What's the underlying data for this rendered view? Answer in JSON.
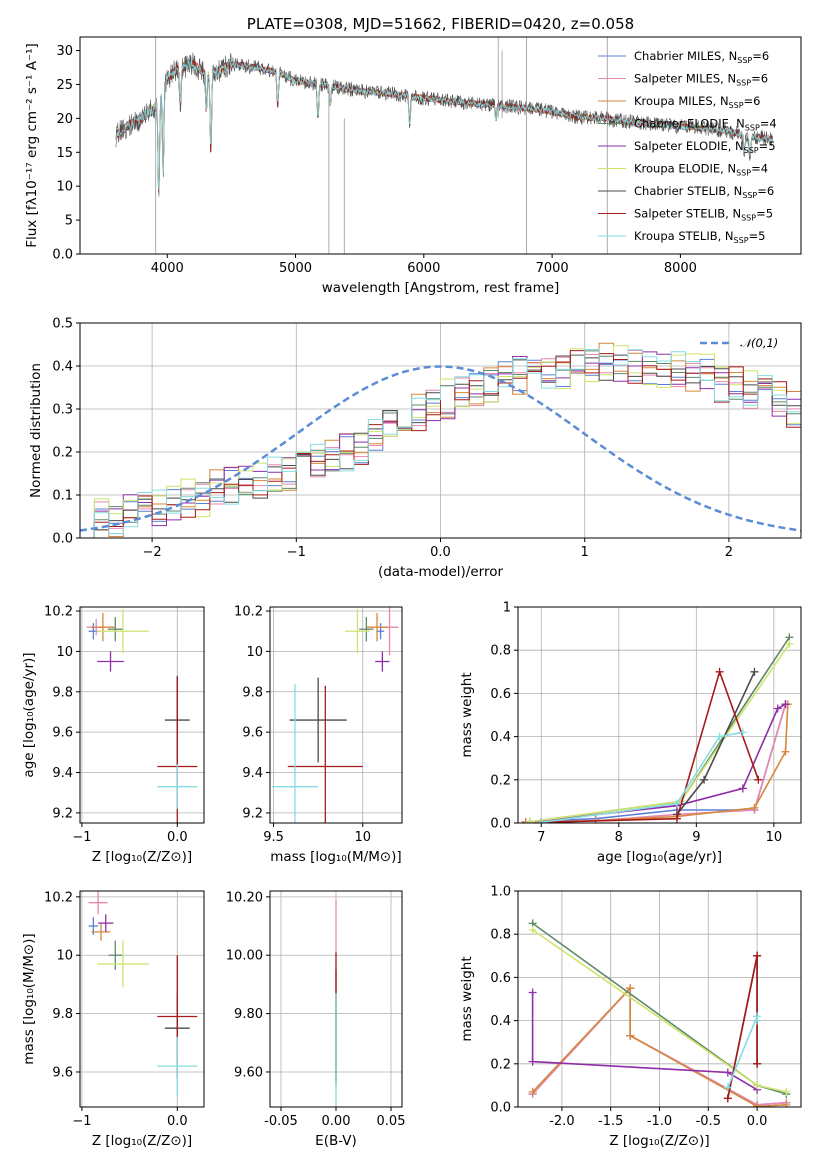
{
  "colors": {
    "chabrier_miles": "#5b7fd6",
    "salpeter_miles": "#e887b0",
    "kroupa_miles": "#d6873a",
    "chabrier_elodie": "#5f8a6a",
    "salpeter_elodie": "#8e2fa8",
    "kroupa_elodie": "#cfe36b",
    "chabrier_stelib": "#4a4a4a",
    "salpeter_stelib": "#a61b1b",
    "kroupa_stelib": "#86dde0",
    "normal_curve": "#5b8cd6",
    "grid": "#b0b0b0"
  },
  "chart_data": [
    {
      "id": "spectrum",
      "type": "line",
      "title": "PLATE=0308, MJD=51662, FIBERID=0420, z=0.058",
      "xlabel": "wavelength [Angstrom, rest frame]",
      "ylabel": "Flux [fλ10⁻¹⁷ erg cm⁻² s⁻¹ A⁻¹]",
      "xlim": [
        3320,
        8940
      ],
      "ylim": [
        0,
        32
      ],
      "xticks": [
        4000,
        5000,
        6000,
        7000,
        8000
      ],
      "yticks": [
        0,
        5,
        10,
        15,
        20,
        25,
        30
      ],
      "grid": false,
      "legend": "top-right",
      "legend_entries": [
        {
          "label": "Chabrier MILES, N",
          "sub": "SSP",
          "suffix": "=6",
          "color": "#5b7fd6"
        },
        {
          "label": "Salpeter MILES, N",
          "sub": "SSP",
          "suffix": "=6",
          "color": "#e887b0"
        },
        {
          "label": "Kroupa MILES, N",
          "sub": "SSP",
          "suffix": "=6",
          "color": "#d6873a"
        },
        {
          "label": "Chabrier ELODIE, N",
          "sub": "SSP",
          "suffix": "=4",
          "color": "#5f8a6a"
        },
        {
          "label": "Salpeter ELODIE, N",
          "sub": "SSP",
          "suffix": "=5",
          "color": "#8e2fa8"
        },
        {
          "label": "Kroupa ELODIE, N",
          "sub": "SSP",
          "suffix": "=4",
          "color": "#cfe36b"
        },
        {
          "label": "Chabrier STELIB, N",
          "sub": "SSP",
          "suffix": "=6",
          "color": "#4a4a4a"
        },
        {
          "label": "Salpeter STELIB, N",
          "sub": "SSP",
          "suffix": "=5",
          "color": "#a61b1b"
        },
        {
          "label": "Kroupa STELIB, N",
          "sub": "SSP",
          "suffix": "=5",
          "color": "#86dde0"
        }
      ],
      "data_continuum": {
        "x": [
          3600,
          3700,
          3800,
          3900,
          4000,
          4100,
          4200,
          4300,
          4400,
          4500,
          4700,
          4900,
          5000,
          5200,
          5500,
          5800,
          6000,
          6200,
          6500,
          6800,
          7000,
          7200,
          7400,
          7600,
          7800,
          8000,
          8200,
          8400,
          8500,
          8700
        ],
        "y": [
          17.5,
          19,
          20,
          21.5,
          26,
          27.5,
          28,
          26.5,
          27,
          28,
          27.5,
          26.5,
          25.5,
          25,
          24,
          23.5,
          23,
          22.5,
          22,
          21.5,
          21,
          20.2,
          20,
          19.5,
          19.2,
          18.8,
          18.5,
          18,
          17.5,
          17
        ]
      },
      "absorption_lines": [
        {
          "x": 3934,
          "y": 8
        },
        {
          "x": 3968,
          "y": 12
        },
        {
          "x": 4102,
          "y": 22
        },
        {
          "x": 4305,
          "y": 21
        },
        {
          "x": 4340,
          "y": 15
        },
        {
          "x": 4861,
          "y": 22
        },
        {
          "x": 5175,
          "y": 20
        },
        {
          "x": 5270,
          "y": 22
        },
        {
          "x": 5890,
          "y": 19
        },
        {
          "x": 6563,
          "y": 20
        },
        {
          "x": 8498,
          "y": 15
        },
        {
          "x": 8542,
          "y": 14
        }
      ],
      "spikes": [
        {
          "x": 3910,
          "y0": 0,
          "y1": 32
        },
        {
          "x": 5260,
          "y0": 0,
          "y1": 25
        },
        {
          "x": 5380,
          "y0": 0,
          "y1": 20
        },
        {
          "x": 6580,
          "y0": 20,
          "y1": 32
        },
        {
          "x": 6610,
          "y0": 20,
          "y1": 30
        },
        {
          "x": 6800,
          "y0": 0,
          "y1": 32
        },
        {
          "x": 7430,
          "y0": 0,
          "y1": 32
        }
      ]
    },
    {
      "id": "residual-histogram",
      "type": "histogram",
      "xlabel": "(data-model)/error",
      "ylabel": "Normed distribution",
      "xlim": [
        -2.5,
        2.5
      ],
      "ylim": [
        0,
        0.5
      ],
      "xticks": [
        -2,
        -1,
        0,
        1,
        2
      ],
      "yticks": [
        0.0,
        0.1,
        0.2,
        0.3,
        0.4,
        0.5
      ],
      "grid": true,
      "legend": "top-right",
      "legend_entries": [
        {
          "label": "𝒩(0,1)",
          "color": "#5b8cd6",
          "style": "dashed"
        }
      ],
      "bin_width": 0.1,
      "x_start": -2.5,
      "base_profile": "gaussian(mu=0, sigma=1)",
      "bin_values": [
        0.035,
        0.045,
        0.04,
        0.06,
        0.07,
        0.065,
        0.075,
        0.09,
        0.095,
        0.11,
        0.12,
        0.13,
        0.125,
        0.14,
        0.15,
        0.17,
        0.18,
        0.19,
        0.2,
        0.21,
        0.24,
        0.26,
        0.27,
        0.29,
        0.31,
        0.32,
        0.335,
        0.34,
        0.355,
        0.37,
        0.38,
        0.385,
        0.39,
        0.395,
        0.4,
        0.4,
        0.405,
        0.405,
        0.4,
        0.395,
        0.39,
        0.39,
        0.385,
        0.375,
        0.36,
        0.355,
        0.34,
        0.33,
        0.32,
        0.3,
        0.28,
        0.27,
        0.25,
        0.235,
        0.22,
        0.205,
        0.19,
        0.175,
        0.16,
        0.145,
        0.13,
        0.115,
        0.1,
        0.09,
        0.08,
        0.07,
        0.06,
        0.055,
        0.05,
        0.04,
        0.035
      ],
      "series_noise": [
        0.02,
        0.018,
        0.022,
        0.016,
        0.02,
        0.024,
        0.018,
        0.02,
        0.022
      ]
    },
    {
      "id": "age-vs-Z",
      "type": "errorbar",
      "xlabel": "Z [log₁₀(Z/Z⊙)]",
      "ylabel": "age [log₁₀(age/yr)]",
      "xlim": [
        -1.02,
        0.28
      ],
      "ylim": [
        9.15,
        10.22
      ],
      "xticks": [
        -1,
        0
      ],
      "yticks": [
        9.2,
        9.4,
        9.6,
        9.8,
        10.0,
        10.2
      ],
      "grid": true,
      "points": [
        {
          "series": "Chabrier MILES",
          "x": -0.88,
          "y": 10.1,
          "xerr": 0.05,
          "yerr": 0.04,
          "color": "#5b7fd6"
        },
        {
          "series": "Salpeter MILES",
          "x": -0.85,
          "y": 10.12,
          "xerr": 0.1,
          "yerr": 0.04,
          "color": "#e887b0"
        },
        {
          "series": "Kroupa MILES",
          "x": -0.78,
          "y": 10.12,
          "xerr": 0.12,
          "yerr": 0.07,
          "color": "#d6873a"
        },
        {
          "series": "Chabrier ELODIE",
          "x": -0.65,
          "y": 10.11,
          "xerr": 0.08,
          "yerr": 0.06,
          "color": "#5f8a6a"
        },
        {
          "series": "Salpeter ELODIE",
          "x": -0.7,
          "y": 9.95,
          "xerr": 0.14,
          "yerr": 0.05,
          "color": "#8e2fa8"
        },
        {
          "series": "Kroupa ELODIE",
          "x": -0.57,
          "y": 10.1,
          "xerr": 0.27,
          "yerr": 0.11,
          "color": "#cfe36b"
        },
        {
          "series": "Chabrier STELIB",
          "x": 0.0,
          "y": 9.66,
          "xerr": 0.13,
          "yerr": 0.22,
          "color": "#4a4a4a"
        },
        {
          "series": "Salpeter STELIB",
          "x": 0.0,
          "y": 9.43,
          "xerr": 0.21,
          "yerr": 0.44,
          "color": "#a61b1b"
        },
        {
          "series": "Kroupa STELIB",
          "x": 0.0,
          "y": 9.33,
          "xerr": 0.21,
          "yerr": 0.11,
          "color": "#86dde0"
        }
      ]
    },
    {
      "id": "age-vs-mass",
      "type": "errorbar",
      "xlabel": "mass [log₁₀(M/M⊙)]",
      "ylabel": "",
      "xlim": [
        9.48,
        10.22
      ],
      "ylim": [
        9.15,
        10.22
      ],
      "xticks": [
        9.5,
        10.0
      ],
      "yticks": [
        9.2,
        9.4,
        9.6,
        9.8,
        10.0,
        10.2
      ],
      "grid": true,
      "points": [
        {
          "series": "Chabrier MILES",
          "x": 10.1,
          "y": 10.1,
          "xerr": 0.02,
          "yerr": 0.04,
          "color": "#5b7fd6"
        },
        {
          "series": "Salpeter MILES",
          "x": 10.15,
          "y": 10.12,
          "xerr": 0.05,
          "yerr": 0.14,
          "color": "#e887b0"
        },
        {
          "series": "Kroupa MILES",
          "x": 10.08,
          "y": 10.12,
          "xerr": 0.06,
          "yerr": 0.07,
          "color": "#d6873a"
        },
        {
          "series": "Chabrier ELODIE",
          "x": 10.02,
          "y": 10.11,
          "xerr": 0.04,
          "yerr": 0.06,
          "color": "#5f8a6a"
        },
        {
          "series": "Salpeter ELODIE",
          "x": 10.11,
          "y": 9.95,
          "xerr": 0.04,
          "yerr": 0.05,
          "color": "#8e2fa8"
        },
        {
          "series": "Kroupa ELODIE",
          "x": 9.97,
          "y": 10.1,
          "xerr": 0.07,
          "yerr": 0.11,
          "color": "#cfe36b"
        },
        {
          "series": "Chabrier STELIB",
          "x": 9.75,
          "y": 9.66,
          "xerr": 0.16,
          "yerr": 0.21,
          "color": "#4a4a4a"
        },
        {
          "series": "Salpeter STELIB",
          "x": 9.79,
          "y": 9.43,
          "xerr": 0.21,
          "yerr": 0.4,
          "color": "#a61b1b"
        },
        {
          "series": "Kroupa STELIB",
          "x": 9.62,
          "y": 9.33,
          "xerr": 0.13,
          "yerr": 0.51,
          "color": "#86dde0"
        }
      ]
    },
    {
      "id": "mass-weight-vs-age",
      "type": "line",
      "xlabel": "age  [log₁₀(age/yr)]",
      "ylabel": "mass weight",
      "xlim": [
        6.7,
        10.35
      ],
      "ylim": [
        0,
        1.0
      ],
      "xticks": [
        7,
        8,
        9,
        10
      ],
      "yticks": [
        0.0,
        0.2,
        0.4,
        0.6,
        0.8,
        1.0
      ],
      "grid": true,
      "series": [
        {
          "name": "Chabrier MILES",
          "color": "#5b7fd6",
          "x": [
            6.8,
            7.7,
            8.75,
            9.75,
            10.15
          ],
          "y": [
            0.005,
            0.02,
            0.06,
            0.06,
            0.55
          ]
        },
        {
          "name": "Salpeter MILES",
          "color": "#e887b0",
          "x": [
            6.8,
            7.7,
            8.75,
            9.75,
            10.15
          ],
          "y": [
            0.005,
            0.01,
            0.04,
            0.06,
            0.55
          ]
        },
        {
          "name": "Kroupa MILES",
          "color": "#d6873a",
          "x": [
            6.8,
            7.7,
            8.75,
            9.75,
            10.15,
            10.18
          ],
          "y": [
            0.003,
            0.01,
            0.03,
            0.07,
            0.33,
            0.55
          ]
        },
        {
          "name": "Chabrier ELODIE",
          "color": "#5f8a6a",
          "x": [
            6.85,
            8.8,
            10.2
          ],
          "y": [
            0.005,
            0.1,
            0.86
          ]
        },
        {
          "name": "Salpeter ELODIE",
          "color": "#8e2fa8",
          "x": [
            6.85,
            8.75,
            9.6,
            10.05,
            10.15
          ],
          "y": [
            0.005,
            0.08,
            0.16,
            0.53,
            0.55
          ]
        },
        {
          "name": "Kroupa ELODIE",
          "color": "#cfe36b",
          "x": [
            6.85,
            8.8,
            10.2
          ],
          "y": [
            0.005,
            0.1,
            0.83
          ]
        },
        {
          "name": "Chabrier STELIB",
          "color": "#4a4a4a",
          "x": [
            8.75,
            9.1,
            9.75
          ],
          "y": [
            0.04,
            0.2,
            0.7
          ]
        },
        {
          "name": "Salpeter STELIB",
          "color": "#a61b1b",
          "x": [
            7.0,
            8.75,
            9.3,
            9.8
          ],
          "y": [
            0.003,
            0.02,
            0.7,
            0.2
          ]
        },
        {
          "name": "Kroupa STELIB",
          "color": "#86dde0",
          "x": [
            7.0,
            8.75,
            9.3,
            9.6
          ],
          "y": [
            0.003,
            0.09,
            0.4,
            0.42
          ]
        }
      ]
    },
    {
      "id": "mass-vs-Z",
      "type": "errorbar",
      "xlabel": "Z [log₁₀(Z/Z⊙)]",
      "ylabel": "mass [log₁₀(M/M⊙)]",
      "xlim": [
        -1.02,
        0.28
      ],
      "ylim": [
        9.48,
        10.22
      ],
      "xticks": [
        -1,
        0
      ],
      "yticks": [
        9.6,
        9.8,
        10.0,
        10.2
      ],
      "grid": true,
      "points": [
        {
          "series": "Chabrier MILES",
          "x": -0.88,
          "y": 10.1,
          "xerr": 0.05,
          "yerr": 0.03,
          "color": "#5b7fd6"
        },
        {
          "series": "Salpeter MILES",
          "x": -0.83,
          "y": 10.18,
          "xerr": 0.1,
          "yerr": 0.04,
          "color": "#e887b0"
        },
        {
          "series": "Kroupa MILES",
          "x": -0.8,
          "y": 10.08,
          "xerr": 0.1,
          "yerr": 0.03,
          "color": "#d6873a"
        },
        {
          "series": "Chabrier ELODIE",
          "x": -0.65,
          "y": 10.0,
          "xerr": 0.07,
          "yerr": 0.05,
          "color": "#5f8a6a"
        },
        {
          "series": "Salpeter ELODIE",
          "x": -0.75,
          "y": 10.11,
          "xerr": 0.08,
          "yerr": 0.03,
          "color": "#8e2fa8"
        },
        {
          "series": "Kroupa ELODIE",
          "x": -0.57,
          "y": 9.97,
          "xerr": 0.27,
          "yerr": 0.08,
          "color": "#cfe36b"
        },
        {
          "series": "Chabrier STELIB",
          "x": 0.0,
          "y": 9.75,
          "xerr": 0.13,
          "yerr": 0.12,
          "color": "#4a4a4a"
        },
        {
          "series": "Salpeter STELIB",
          "x": 0.0,
          "y": 9.79,
          "xerr": 0.21,
          "yerr": 0.21,
          "color": "#a61b1b"
        },
        {
          "series": "Kroupa STELIB",
          "x": 0.0,
          "y": 9.62,
          "xerr": 0.21,
          "yerr": 0.1,
          "color": "#86dde0"
        }
      ]
    },
    {
      "id": "mass-vs-EBV",
      "type": "errorbar",
      "xlabel": "E(B-V)",
      "ylabel": "",
      "xlim": [
        -0.06,
        0.06
      ],
      "ylim": [
        9.48,
        10.22
      ],
      "xticks": [
        -0.05,
        0.0,
        0.05
      ],
      "yticks": [
        9.6,
        9.8,
        10.0,
        10.2
      ],
      "grid": true,
      "points": [
        {
          "series": "Salpeter MILES",
          "x": 0.0,
          "y": 10.1,
          "xerr": 0.0,
          "yerr": 0.09,
          "color": "#e887b0"
        },
        {
          "series": "Chabrier STELIB",
          "x": 0.0,
          "y": 9.75,
          "xerr": 0.0,
          "yerr": 0.2,
          "color": "#4a4a4a"
        },
        {
          "series": "Salpeter STELIB",
          "x": 0.0,
          "y": 9.79,
          "xerr": 0.0,
          "yerr": 0.22,
          "color": "#a61b1b"
        },
        {
          "series": "Kroupa STELIB",
          "x": 0.0,
          "y": 9.62,
          "xerr": 0.0,
          "yerr": 0.25,
          "color": "#86dde0"
        }
      ]
    },
    {
      "id": "mass-weight-vs-Z",
      "type": "line",
      "xlabel": "Z [log₁₀(Z/Z⊙)]",
      "ylabel": "mass weight",
      "xlim": [
        -2.45,
        0.45
      ],
      "ylim": [
        0,
        1.0
      ],
      "xticks": [
        -2.0,
        -1.5,
        -1.0,
        -0.5,
        0.0
      ],
      "yticks": [
        0.0,
        0.2,
        0.4,
        0.6,
        0.8,
        1.0
      ],
      "grid": true,
      "series": [
        {
          "name": "Chabrier MILES",
          "color": "#5b7fd6",
          "x": [
            -2.3,
            -1.3,
            -1.3,
            0.0,
            0.3
          ],
          "y": [
            0.06,
            0.55,
            0.33,
            0.01,
            0.02
          ]
        },
        {
          "name": "Salpeter MILES",
          "color": "#e887b0",
          "x": [
            -2.3,
            -1.3,
            -1.3,
            0.0,
            0.3
          ],
          "y": [
            0.06,
            0.55,
            0.33,
            0.01,
            0.02
          ]
        },
        {
          "name": "Kroupa MILES",
          "color": "#d6873a",
          "x": [
            -2.3,
            -1.3,
            -1.3,
            0.0,
            0.3
          ],
          "y": [
            0.07,
            0.55,
            0.33,
            0.003,
            0.01
          ]
        },
        {
          "name": "Chabrier ELODIE",
          "color": "#5f8a6a",
          "x": [
            -2.3,
            0.0,
            0.3
          ],
          "y": [
            0.85,
            0.1,
            0.06
          ]
        },
        {
          "name": "Salpeter ELODIE",
          "color": "#8e2fa8",
          "x": [
            -2.3,
            -2.3,
            -0.3,
            0.0
          ],
          "y": [
            0.53,
            0.21,
            0.16,
            0.08
          ]
        },
        {
          "name": "Kroupa ELODIE",
          "color": "#cfe36b",
          "x": [
            -2.3,
            0.0,
            0.3
          ],
          "y": [
            0.82,
            0.1,
            0.07
          ]
        },
        {
          "name": "Chabrier STELIB",
          "color": "#4a4a4a",
          "x": [
            -0.3,
            0.0,
            0.0
          ],
          "y": [
            0.04,
            0.7,
            0.2
          ]
        },
        {
          "name": "Salpeter STELIB",
          "color": "#a61b1b",
          "x": [
            -0.3,
            0.0,
            0.0
          ],
          "y": [
            0.04,
            0.7,
            0.2
          ]
        },
        {
          "name": "Kroupa STELIB",
          "color": "#86dde0",
          "x": [
            -0.3,
            0.0,
            0.0
          ],
          "y": [
            0.09,
            0.42,
            0.4
          ]
        }
      ]
    }
  ]
}
